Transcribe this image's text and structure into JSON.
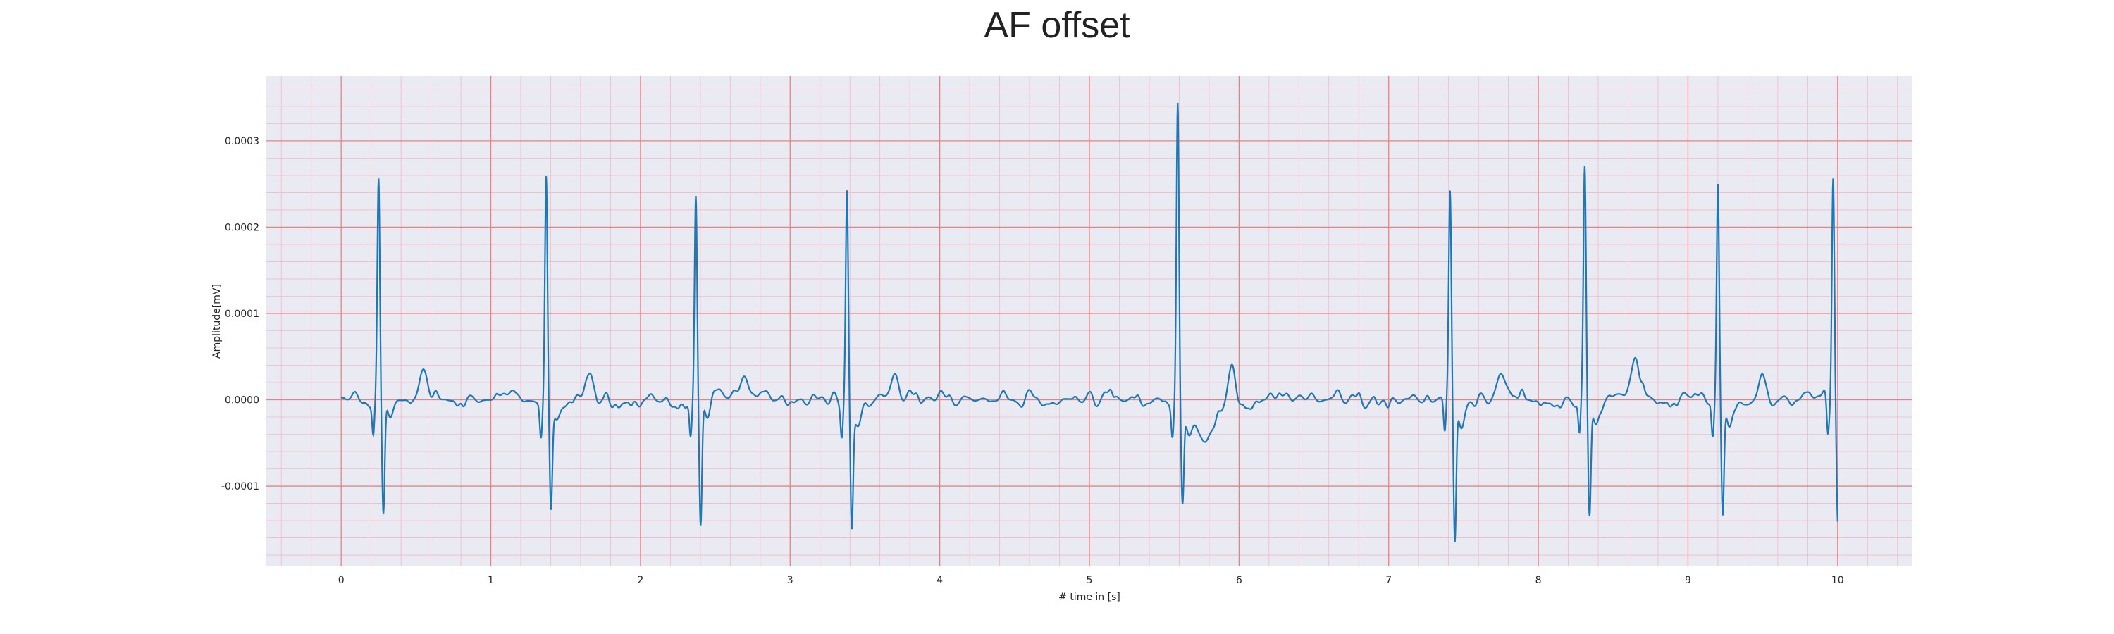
{
  "chart_data": {
    "type": "line",
    "title": "AF offset",
    "xlabel": "# time in [s]",
    "ylabel": "Amplitude[mV]",
    "xlim": [
      -0.5,
      10.5
    ],
    "ylim": [
      -0.000193,
      0.000375
    ],
    "x_ticks": [
      0,
      1,
      2,
      3,
      4,
      5,
      6,
      7,
      8,
      9,
      10
    ],
    "x_tick_labels": [
      "0",
      "1",
      "2",
      "3",
      "4",
      "5",
      "6",
      "7",
      "8",
      "9",
      "10"
    ],
    "y_ticks": [
      -0.0001,
      0.0,
      0.0001,
      0.0002,
      0.0003
    ],
    "y_tick_labels": [
      "-0.0001",
      "0.0000",
      "0.0001",
      "0.0002",
      "0.0003"
    ],
    "grid": true,
    "grid_style": "ecg-paper",
    "colors": {
      "background": "#eaeaf2",
      "major_grid": "#f08080",
      "minor_grid": "#f4b8c4",
      "line": "#1f77b4"
    },
    "r_peak_times": [
      0.25,
      1.37,
      2.37,
      3.38,
      5.59,
      7.41,
      8.31,
      9.2,
      9.97
    ],
    "r_peak_amplitudes": [
      0.000255,
      0.000263,
      0.000237,
      0.000244,
      0.000348,
      0.000233,
      0.000263,
      0.000252,
      0.000265
    ],
    "s_trough_amplitudes": [
      -0.000133,
      -0.000117,
      -0.000147,
      -0.000142,
      -0.000112,
      -0.000165,
      -0.000136,
      -0.000133,
      -0.00014
    ],
    "wave_peaks": [
      {
        "t": 0.55,
        "v": 3.8e-05
      },
      {
        "t": 1.67,
        "v": 3.3e-05
      },
      {
        "t": 2.7,
        "v": 3.2e-05
      },
      {
        "t": 3.7,
        "v": 3.5e-05
      },
      {
        "t": 5.95,
        "v": 3.8e-05
      },
      {
        "t": 7.75,
        "v": 3.3e-05
      },
      {
        "t": 8.65,
        "v": 3.8e-05
      },
      {
        "t": 9.5,
        "v": 3.3e-05
      }
    ],
    "series": [
      {
        "values_description": "ECG trace"
      }
    ]
  }
}
